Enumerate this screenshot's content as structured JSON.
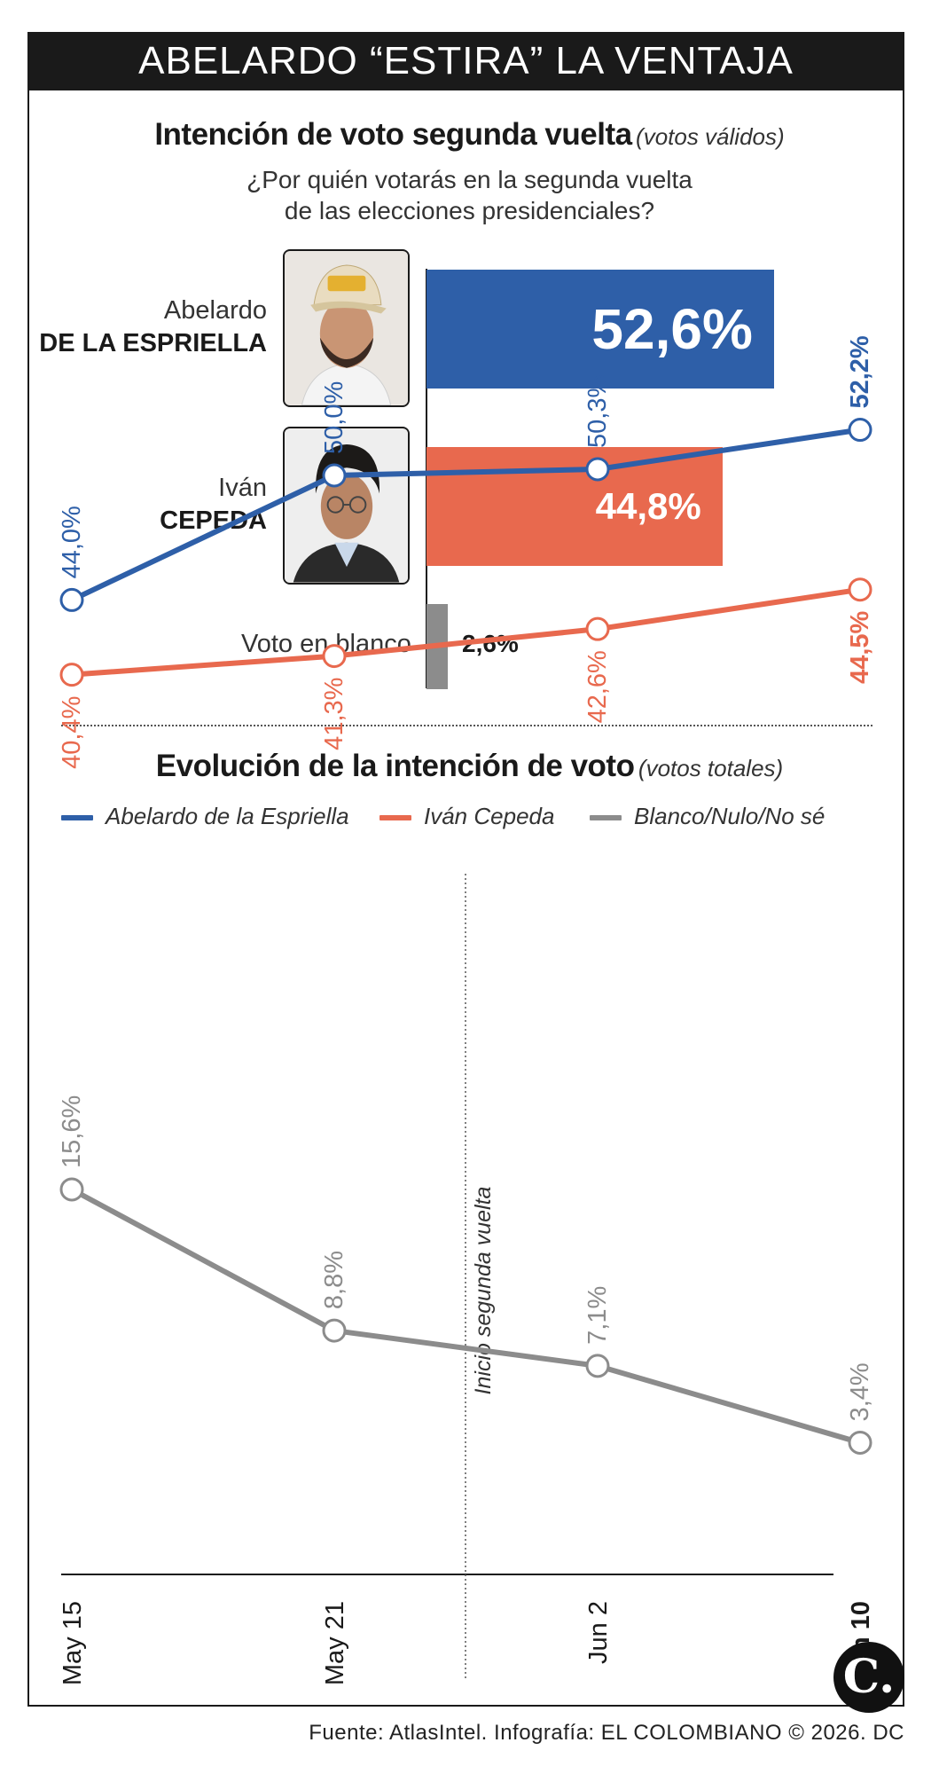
{
  "header": {
    "title": "ABELARDO “ESTIRA” LA VENTAJA"
  },
  "section1": {
    "title": "Intención de voto segunda vuelta",
    "subtitle": "(votos válidos)",
    "question_line1": "¿Por quién votarás en la segunda vuelta",
    "question_line2": "de las elecciones presidenciales?"
  },
  "candidates": [
    {
      "first": "Abelardo",
      "last": "DE LA ESPRIELLA"
    },
    {
      "first": "Iván",
      "last": "CEPEDA"
    }
  ],
  "blank": {
    "label": "Voto en blanco"
  },
  "section2": {
    "title": "Evolución de la intención de voto",
    "subtitle": "(votos totales)",
    "annotation": "Inicio segunda vuelta"
  },
  "legend": [
    {
      "label": "Abelardo de la Espriella",
      "color": "#2e5fa8"
    },
    {
      "label": "Iván Cepeda",
      "color": "#e8694e"
    },
    {
      "label": "Blanco/Nulo/No sé",
      "color": "#8c8c8c"
    }
  ],
  "chart_data": [
    {
      "type": "bar",
      "orientation": "horizontal",
      "categories": [
        "Abelardo DE LA ESPRIELLA",
        "Iván CEPEDA",
        "Voto en blanco"
      ],
      "values": [
        52.6,
        44.8,
        2.6
      ],
      "value_labels": [
        "52,6%",
        "44,8%",
        "2,6%"
      ],
      "colors": [
        "#2e5fa8",
        "#e8694e",
        "#8c8c8c"
      ],
      "title": "Intención de voto segunda vuelta",
      "subtitle": "(votos válidos)"
    },
    {
      "type": "line",
      "title": "Evolución de la intención de voto",
      "subtitle": "(votos totales)",
      "x": [
        "May 15",
        "May 21",
        "Jun 2",
        "Jun 10"
      ],
      "series": [
        {
          "name": "Abelardo de la Espriella",
          "color": "#2e5fa8",
          "values": [
            44.0,
            50.0,
            50.3,
            52.2
          ],
          "labels": [
            "44,0%",
            "50,0%",
            "50,3%",
            "52,2%"
          ]
        },
        {
          "name": "Iván Cepeda",
          "color": "#e8694e",
          "values": [
            40.4,
            41.3,
            42.6,
            44.5
          ],
          "labels": [
            "40,4%",
            "41,3%",
            "42,6%",
            "44,5%"
          ]
        },
        {
          "name": "Blanco/Nulo/No sé",
          "color": "#8c8c8c",
          "values": [
            15.6,
            8.8,
            7.1,
            3.4
          ],
          "labels": [
            "15,6%",
            "8,8%",
            "7,1%",
            "3,4%"
          ]
        }
      ],
      "annotation": {
        "between": [
          "May 21",
          "Jun 2"
        ],
        "text": "Inicio segunda vuelta"
      },
      "last_point_bold": true
    }
  ],
  "footer": {
    "source": "Fuente: AtlasIntel. Infografía: EL COLOMBIANO © 2026. DC"
  },
  "logo": {
    "text": "C."
  }
}
